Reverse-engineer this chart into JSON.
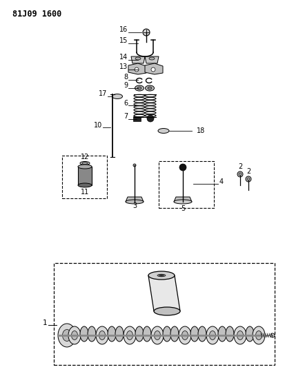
{
  "title": "81J09 1600",
  "bg_color": "#ffffff",
  "lc": "#000000",
  "fig_width": 4.13,
  "fig_height": 5.33,
  "dpi": 100
}
